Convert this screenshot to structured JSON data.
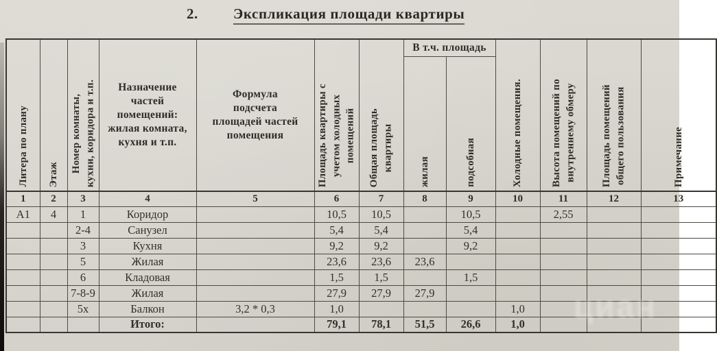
{
  "doc": {
    "section_number": "2.",
    "title": "Экспликация площади квартиры",
    "watermark": "циан"
  },
  "table": {
    "group_header": "В т.ч. площадь",
    "columns": [
      {
        "num": "1",
        "label": "Литера по плану"
      },
      {
        "num": "2",
        "label": "Этаж"
      },
      {
        "num": "3",
        "label": "Номер комнаты,\nкухни, коридора и т.п."
      },
      {
        "num": "4",
        "label": "Назначение\nчастей\nпомещений:\nжилая комната,\nкухня и т.п."
      },
      {
        "num": "5",
        "label": "Формула\nподсчета\nплощадей частей\nпомещения"
      },
      {
        "num": "6",
        "label": "Площадь квартиры с\nучетом холодных\nпомещений"
      },
      {
        "num": "7",
        "label": "Общая площадь\nквартиры"
      },
      {
        "num": "8",
        "label": "жилая"
      },
      {
        "num": "9",
        "label": "подсобная"
      },
      {
        "num": "10",
        "label": "Холодные помещения."
      },
      {
        "num": "11",
        "label": "Высота помещений по\nвнутреннему обмеру"
      },
      {
        "num": "12",
        "label": "Площадь помещений\nобщего пользования"
      },
      {
        "num": "13",
        "label": "Примечание"
      }
    ],
    "rows": [
      [
        "А1",
        "4",
        "1",
        "Коридор",
        "",
        "10,5",
        "10,5",
        "",
        "10,5",
        "",
        "2,55",
        "",
        ""
      ],
      [
        "",
        "",
        "2-4",
        "Санузел",
        "",
        "5,4",
        "5,4",
        "",
        "5,4",
        "",
        "",
        "",
        ""
      ],
      [
        "",
        "",
        "3",
        "Кухня",
        "",
        "9,2",
        "9,2",
        "",
        "9,2",
        "",
        "",
        "",
        ""
      ],
      [
        "",
        "",
        "5",
        "Жилая",
        "",
        "23,6",
        "23,6",
        "23,6",
        "",
        "",
        "",
        "",
        ""
      ],
      [
        "",
        "",
        "6",
        "Кладовая",
        "",
        "1,5",
        "1,5",
        "",
        "1,5",
        "",
        "",
        "",
        ""
      ],
      [
        "",
        "",
        "7-8-9",
        "Жилая",
        "",
        "27,9",
        "27,9",
        "27,9",
        "",
        "",
        "",
        "",
        ""
      ],
      [
        "",
        "",
        "5х",
        "Балкон",
        "3,2 * 0,3",
        "1,0",
        "",
        "",
        "",
        "1,0",
        "",
        "",
        ""
      ],
      [
        "",
        "",
        "",
        "Итого:",
        "",
        "79,1",
        "78,1",
        "51,5",
        "26,6",
        "1,0",
        "",
        "",
        ""
      ]
    ]
  }
}
